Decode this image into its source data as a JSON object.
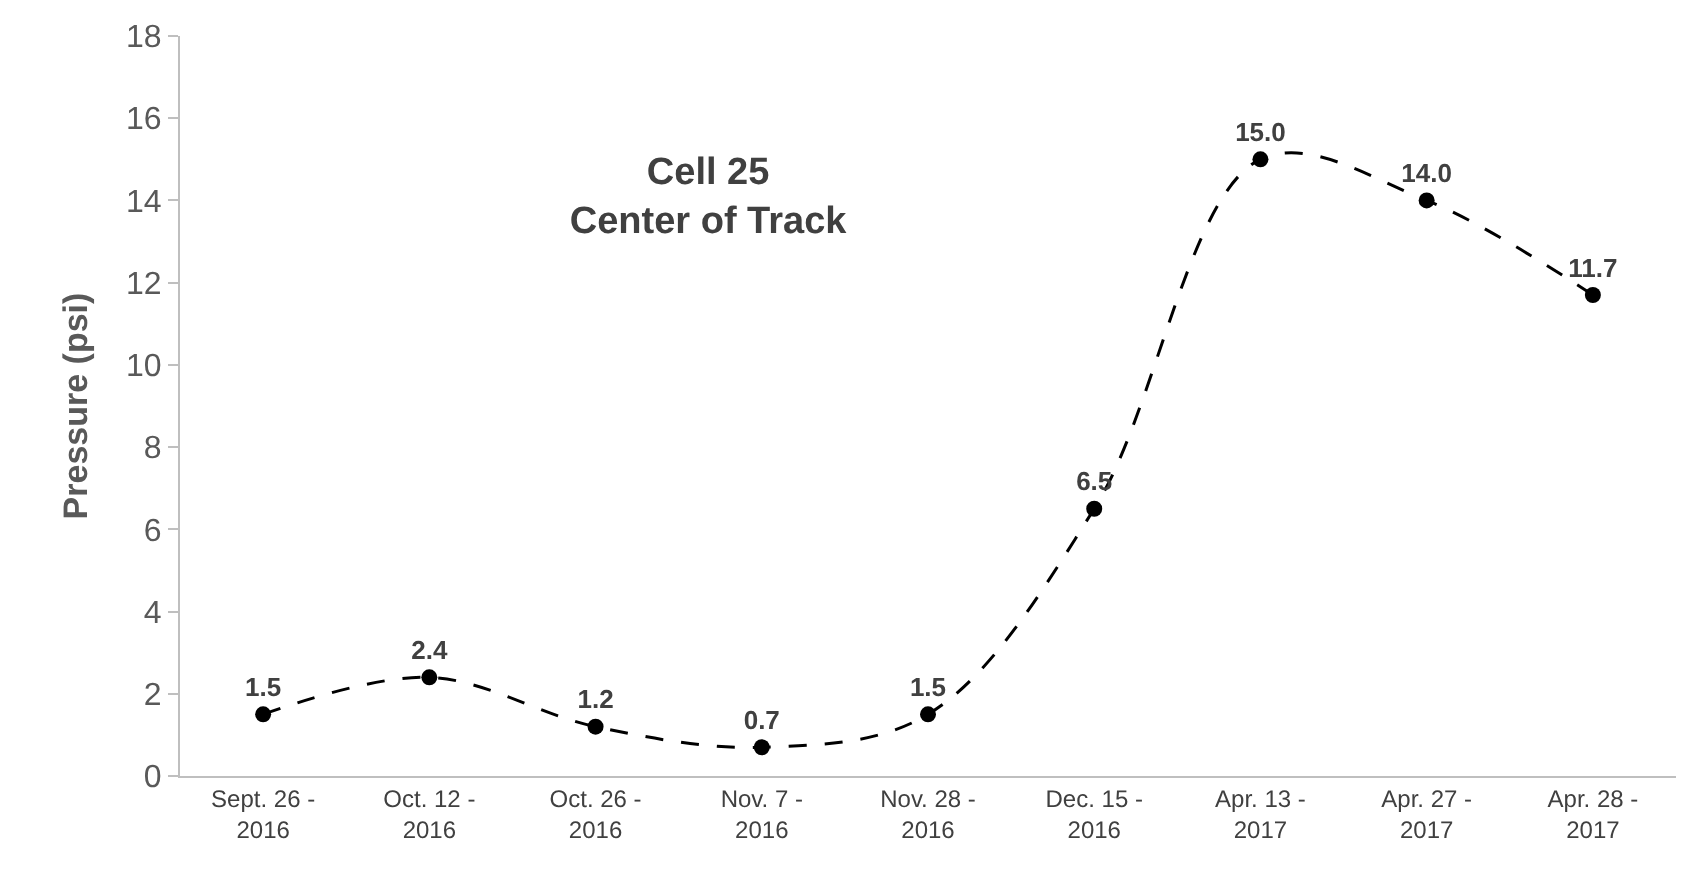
{
  "chart_data": {
    "type": "line",
    "title": "Cell 25\nCenter of Track",
    "ylabel": "Pressure (psi)",
    "categories": [
      "Sept. 26 - 2016",
      "Oct. 12 - 2016",
      "Oct. 26 - 2016",
      "Nov. 7 - 2016",
      "Nov. 28 - 2016",
      "Dec. 15 - 2016",
      "Apr. 13 - 2017",
      "Apr. 27 - 2017",
      "Apr. 28 - 2017"
    ],
    "series": [
      {
        "color": "#000000",
        "values": [
          1.5,
          2.4,
          1.2,
          0.7,
          1.5,
          6.5,
          15.0,
          14.0,
          11.7
        ],
        "value_labels": [
          "1.5",
          "2.4",
          "1.2",
          "0.7",
          "1.5",
          "6.5",
          "15.0",
          "14.0",
          "11.7"
        ]
      }
    ],
    "ylim": [
      0,
      18
    ],
    "yticks": [
      0,
      2,
      4,
      6,
      8,
      10,
      12,
      14,
      16,
      18
    ],
    "grid": false,
    "marker": "circle",
    "line_style": "dashed"
  }
}
